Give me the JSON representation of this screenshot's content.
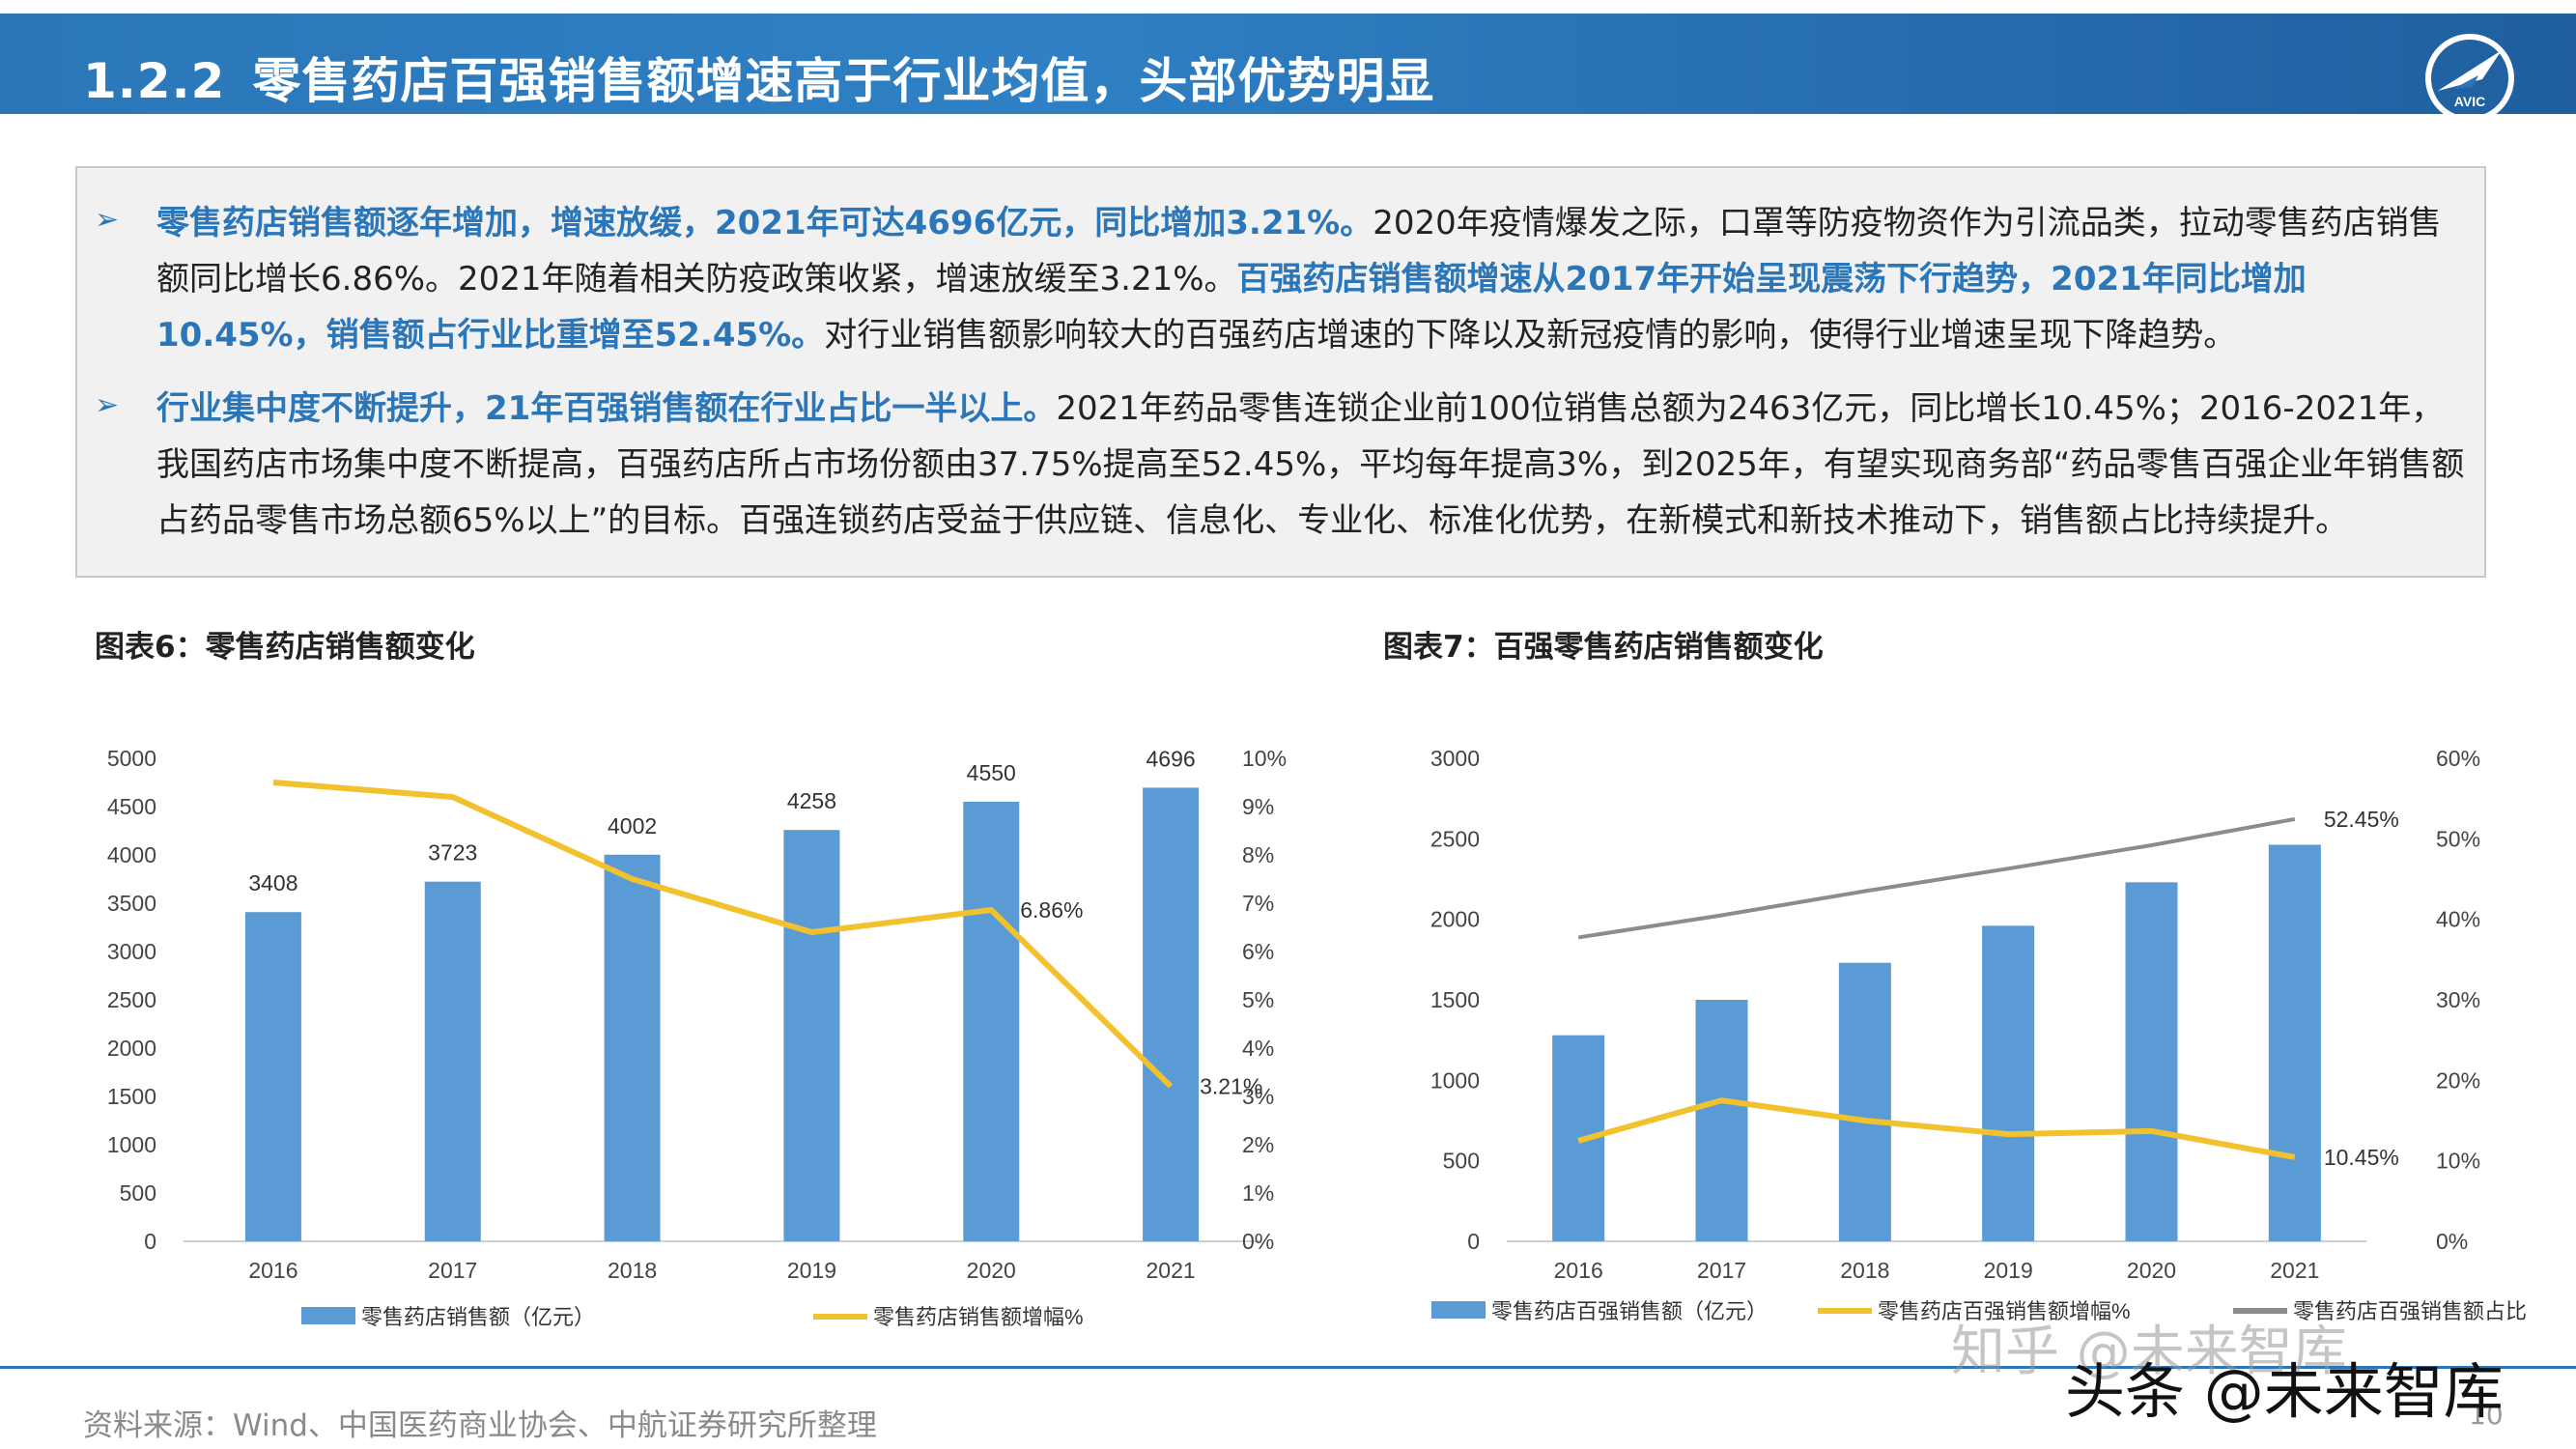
{
  "header": {
    "section_number": "1.2.2",
    "title": "零售药店百强销售额增速高于行业均值，头部优势明显",
    "logo_text": "AVIC"
  },
  "bullets": [
    {
      "segments": [
        {
          "text": "零售药店销售额逐年增加，增速放缓，2021年可达4696亿元，同比增加3.21%。",
          "highlight": true
        },
        {
          "text": "2020年疫情爆发之际，口罩等防疫物资作为引流品类，拉动零售药店销售额同比增长6.86%。2021年随着相关防疫政策收紧，增速放缓至3.21%。",
          "highlight": false
        },
        {
          "text": "百强药店销售额增速从2017年开始呈现震荡下行趋势，2021年同比增加10.45%，销售额占行业比重增至52.45%。",
          "highlight": true
        },
        {
          "text": "对行业销售额影响较大的百强药店增速的下降以及新冠疫情的影响，使得行业增速呈现下降趋势。",
          "highlight": false
        }
      ]
    },
    {
      "segments": [
        {
          "text": "行业集中度不断提升，21年百强销售额在行业占比一半以上。",
          "highlight": true
        },
        {
          "text": "2021年药品零售连锁企业前100位销售总额为2463亿元，同比增长10.45%；2016-2021年，我国药店市场集中度不断提高，百强药店所占市场份额由37.75%提高至52.45%，平均每年提高3%，到2025年，有望实现商务部“药品零售百强企业年销售额占药品零售市场总额65%以上”的目标。百强连锁药店受益于供应链、信息化、专业化、标准化优势，在新模式和新技术推动下，销售额占比持续提升。",
          "highlight": false
        }
      ]
    }
  ],
  "bullet_symbol": "➢",
  "figures": [
    {
      "title": "图表6：零售药店销售额变化"
    },
    {
      "title": "图表7：百强零售药店销售额变化"
    }
  ],
  "chart_data": [
    {
      "type": "bar",
      "title": "",
      "categories": [
        "2016",
        "2017",
        "2018",
        "2019",
        "2020",
        "2021"
      ],
      "series": [
        {
          "name": "零售药店销售额（亿元）",
          "type": "bar",
          "axis": "left",
          "values": [
            3408,
            3723,
            4002,
            4258,
            4550,
            4696
          ],
          "data_labels": [
            "3408",
            "3723",
            "4002",
            "4258",
            "4550",
            "4696"
          ],
          "color": "#5b9bd5"
        },
        {
          "name": "零售药店销售额增幅%",
          "type": "line",
          "axis": "right",
          "values": [
            9.5,
            9.2,
            7.5,
            6.4,
            6.86,
            3.21
          ],
          "data_labels": [
            "",
            "",
            "",
            "",
            "6.86%",
            "3.21%"
          ],
          "color": "#f2c12e"
        }
      ],
      "y_left": {
        "min": 0,
        "max": 5000,
        "ticks": [
          "0",
          "500",
          "1000",
          "1500",
          "2000",
          "2500",
          "3000",
          "3500",
          "4000",
          "4500",
          "5000"
        ]
      },
      "y_right": {
        "min": 0,
        "max": 10,
        "ticks": [
          "0%",
          "1%",
          "2%",
          "3%",
          "4%",
          "5%",
          "6%",
          "7%",
          "8%",
          "9%",
          "10%"
        ]
      },
      "grid": false,
      "legend": "bottom"
    },
    {
      "type": "bar",
      "title": "",
      "categories": [
        "2016",
        "2017",
        "2018",
        "2019",
        "2020",
        "2021"
      ],
      "series": [
        {
          "name": "零售药店百强销售额（亿元）",
          "type": "bar",
          "axis": "left",
          "values": [
            1280,
            1500,
            1730,
            1960,
            2230,
            2463
          ],
          "data_labels": [
            "",
            "",
            "",
            "",
            "",
            ""
          ],
          "color": "#5b9bd5"
        },
        {
          "name": "零售药店百强销售额增幅%",
          "type": "line",
          "axis": "right",
          "values": [
            12.5,
            17.5,
            15.0,
            13.3,
            13.7,
            10.45
          ],
          "data_labels": [
            "",
            "",
            "",
            "",
            "",
            "10.45%"
          ],
          "color": "#f2c12e"
        },
        {
          "name": "零售药店百强销售额占比",
          "type": "line",
          "axis": "right",
          "values": [
            37.75,
            40.5,
            43.5,
            46.3,
            49.2,
            52.45
          ],
          "data_labels": [
            "",
            "",
            "",
            "",
            "",
            "52.45%"
          ],
          "color": "#8c8c8c"
        }
      ],
      "y_left": {
        "min": 0,
        "max": 3000,
        "ticks": [
          "0",
          "500",
          "1000",
          "1500",
          "2000",
          "2500",
          "3000"
        ]
      },
      "y_right": {
        "min": 0,
        "max": 60,
        "ticks": [
          "0%",
          "10%",
          "20%",
          "30%",
          "40%",
          "50%",
          "60%"
        ]
      },
      "grid": false,
      "legend": "bottom"
    }
  ],
  "footer": {
    "source": "资料来源：Wind、中国医药商业协会、中航证券研究所整理",
    "page_number": "10"
  },
  "watermarks": {
    "overlay": "知乎 @未来智库",
    "corner": "头条 @未来智库"
  }
}
